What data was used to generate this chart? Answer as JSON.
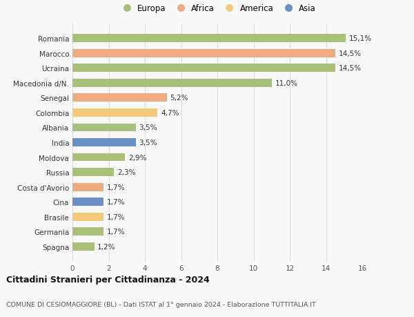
{
  "countries": [
    "Spagna",
    "Germania",
    "Brasile",
    "Cina",
    "Costa d'Avorio",
    "Russia",
    "Moldova",
    "India",
    "Albania",
    "Colombia",
    "Senegal",
    "Macedonia d/N.",
    "Ucraina",
    "Marocco",
    "Romania"
  ],
  "values": [
    1.2,
    1.7,
    1.7,
    1.7,
    1.7,
    2.3,
    2.9,
    3.5,
    3.5,
    4.7,
    5.2,
    11.0,
    14.5,
    14.5,
    15.1
  ],
  "colors": [
    "#a8c07a",
    "#a8c07a",
    "#f5c97a",
    "#6a90c8",
    "#f0aa80",
    "#a8c07a",
    "#a8c07a",
    "#6a90c8",
    "#a8c07a",
    "#f5c97a",
    "#f0aa80",
    "#a8c07a",
    "#a8c07a",
    "#f0aa80",
    "#a8c07a"
  ],
  "labels": [
    "1,2%",
    "1,7%",
    "1,7%",
    "1,7%",
    "1,7%",
    "2,3%",
    "2,9%",
    "3,5%",
    "3,5%",
    "4,7%",
    "5,2%",
    "11,0%",
    "14,5%",
    "14,5%",
    "15,1%"
  ],
  "legend": [
    {
      "label": "Europa",
      "color": "#a8c07a"
    },
    {
      "label": "Africa",
      "color": "#f0aa80"
    },
    {
      "label": "America",
      "color": "#f5c97a"
    },
    {
      "label": "Asia",
      "color": "#6a90c8"
    }
  ],
  "xlim": [
    0,
    16
  ],
  "xticks": [
    0,
    2,
    4,
    6,
    8,
    10,
    12,
    14,
    16
  ],
  "title": "Cittadini Stranieri per Cittadinanza - 2024",
  "subtitle": "COMUNE DI CESIOMAGGIORE (BL) - Dati ISTAT al 1° gennaio 2024 - Elaborazione TUTTITALIA.IT",
  "background_color": "#f9f9f9",
  "grid_color": "#dddddd",
  "bar_height": 0.55
}
